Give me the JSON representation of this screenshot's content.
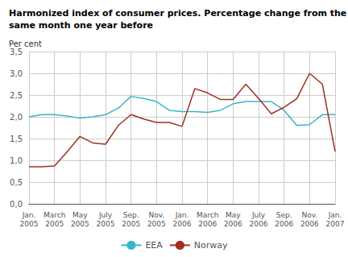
{
  "chart_data": {
    "type": "line",
    "title": "Harmonized index of consumer prices. Percentage change from the\nsame month one year before",
    "y_label": "Per cent",
    "categories": [
      "Jan.\n2005",
      null,
      "March\n2005",
      null,
      "May\n2005",
      null,
      "July\n2005",
      null,
      "Sep.\n2005",
      null,
      "Nov.\n2005",
      null,
      "Jan.\n2006",
      null,
      "March\n2006",
      null,
      "May\n2006",
      null,
      "July\n2006",
      null,
      "Sep.\n2006",
      null,
      "Nov.\n2006",
      null,
      "Jan.\n2007"
    ],
    "series": [
      {
        "name": "EEA",
        "color": "#3ab5c6",
        "values": [
          2.0,
          2.05,
          2.05,
          2.02,
          1.97,
          2.0,
          2.05,
          2.2,
          2.47,
          2.42,
          2.35,
          2.15,
          2.12,
          2.12,
          2.1,
          2.15,
          2.3,
          2.35,
          2.35,
          2.35,
          2.15,
          1.8,
          1.82,
          2.05,
          2.05
        ]
      },
      {
        "name": "Norway",
        "color": "#a03020",
        "values": [
          0.85,
          0.85,
          0.87,
          1.2,
          1.55,
          1.4,
          1.37,
          1.8,
          2.05,
          1.95,
          1.87,
          1.87,
          1.78,
          2.65,
          2.55,
          2.4,
          2.4,
          2.75,
          2.42,
          2.07,
          2.22,
          2.42,
          3.0,
          2.75,
          1.2
        ]
      }
    ],
    "ylim": [
      0.0,
      3.5
    ],
    "yticks": [
      {
        "value": 0.0,
        "label": "0,0"
      },
      {
        "value": 0.5,
        "label": "0,5"
      },
      {
        "value": 1.0,
        "label": "1,0"
      },
      {
        "value": 1.5,
        "label": "1,5"
      },
      {
        "value": 2.0,
        "label": "2,0"
      },
      {
        "value": 2.5,
        "label": "2,5"
      },
      {
        "value": 3.0,
        "label": "3,0"
      },
      {
        "value": 3.5,
        "label": "3,5"
      }
    ],
    "grid": true,
    "legend": "bottom"
  }
}
